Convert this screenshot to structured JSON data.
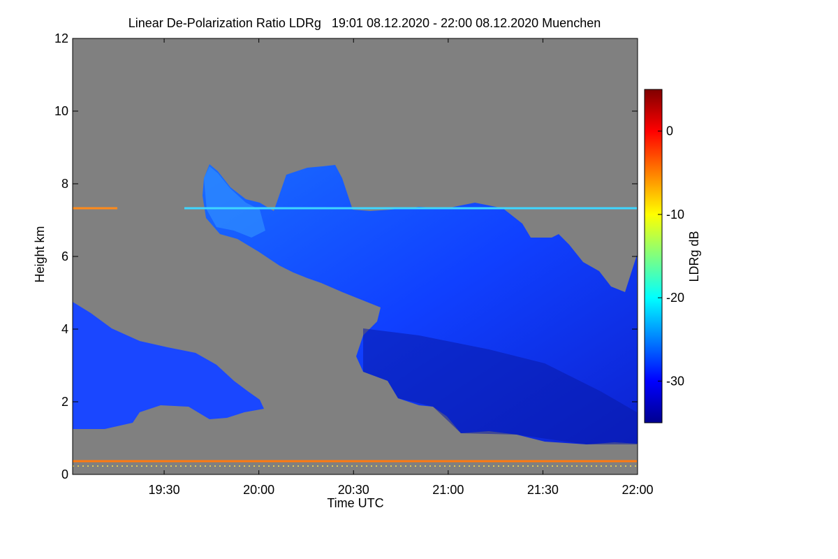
{
  "chart_data": {
    "type": "heatmap",
    "title": "Linear De-Polarization Ratio LDRg   19:01 08.12.2020 - 22:00 08.12.2020 Muenchen",
    "xlabel": "Time UTC",
    "ylabel": "Height km",
    "x_range": [
      "19:01",
      "22:00"
    ],
    "x_ticks": [
      {
        "value": "19:30",
        "label": "19:30"
      },
      {
        "value": "20:00",
        "label": "20:00"
      },
      {
        "value": "20:30",
        "label": "20:30"
      },
      {
        "value": "21:00",
        "label": "21:00"
      },
      {
        "value": "21:30",
        "label": "21:30"
      },
      {
        "value": "22:00",
        "label": "22:00"
      }
    ],
    "ylim": [
      0,
      12
    ],
    "y_ticks": [
      0,
      2,
      4,
      6,
      8,
      10,
      12
    ],
    "colorbar": {
      "label": "LDRg dB",
      "range": [
        -35,
        5
      ],
      "ticks": [
        0,
        -10,
        -20,
        -30
      ],
      "colormap": "jet"
    },
    "background_color": "#808080",
    "regions": [
      {
        "name": "cirrus-fall-streak",
        "time": [
          "19:43",
          "22:00"
        ],
        "height_km": [
          0.75,
          8.6
        ],
        "ldr_db_typical": -30
      },
      {
        "name": "lower-cloud-layer",
        "time": [
          "19:01",
          "20:02"
        ],
        "height_km": [
          1.2,
          4.6
        ],
        "ldr_db_typical": -30
      },
      {
        "name": "artifact-line-7.3km",
        "time": [
          "19:01",
          "22:00"
        ],
        "height_km": [
          7.3,
          7.3
        ],
        "ldr_db_typical": -20
      },
      {
        "name": "near-ground-layer",
        "time": [
          "19:01",
          "22:00"
        ],
        "height_km": [
          0.3,
          0.3
        ],
        "ldr_db_typical": -2
      }
    ]
  }
}
